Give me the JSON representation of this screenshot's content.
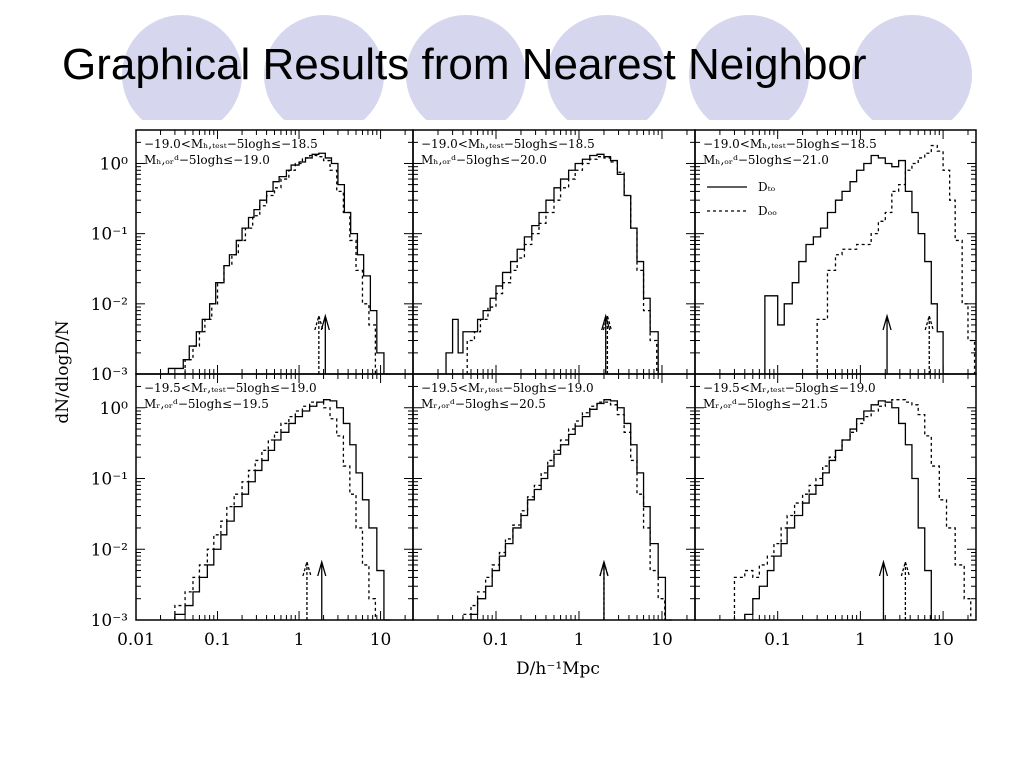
{
  "slide": {
    "title": "Graphical Results from Nearest Neighbor",
    "colors": {
      "decor_circle": "#d6d6ee",
      "text": "#000000",
      "background": "#ffffff"
    }
  },
  "figure": {
    "ylabel": "dN/dlogD/N",
    "xlabel": "D/h⁻¹Mpc",
    "y_ticks": [
      "10⁻³",
      "10⁻²",
      "10⁻¹",
      "10⁰"
    ],
    "x_ticks": [
      [
        "0.01",
        "0.1",
        "1",
        "10"
      ],
      [
        "0.1",
        "1",
        "10"
      ],
      [
        "0.1",
        "1",
        "10"
      ]
    ],
    "legend": {
      "solid": "Dₜₒ",
      "dashed": "Dₒₒ"
    }
  },
  "chart_data": [
    {
      "type": "line",
      "panel": "top-left",
      "xscale": "log",
      "yscale": "log",
      "xlim": [
        0.01,
        25
      ],
      "ylim": [
        0.001,
        3
      ],
      "annotation": [
        "−19.0<Mₕ,ₜₑₛₜ−5logh≤−18.5",
        "Mₕ,ₒᵣᵈ−5logh≤−19.0"
      ],
      "series": [
        {
          "style": "solid",
          "x": [
            0.025,
            0.03,
            0.038,
            0.045,
            0.055,
            0.065,
            0.08,
            0.095,
            0.12,
            0.14,
            0.17,
            0.2,
            0.24,
            0.28,
            0.33,
            0.4,
            0.48,
            0.57,
            0.7,
            0.8,
            1.0,
            1.2,
            1.45,
            1.75,
            2.1,
            2.5,
            3.0,
            3.6,
            4.3,
            5.2,
            6.2,
            7.5,
            9.0,
            11.0
          ],
          "y": [
            0.0012,
            0.0012,
            0.0016,
            0.0025,
            0.004,
            0.006,
            0.01,
            0.02,
            0.035,
            0.05,
            0.08,
            0.12,
            0.17,
            0.22,
            0.3,
            0.4,
            0.55,
            0.65,
            0.8,
            0.95,
            1.05,
            1.2,
            1.35,
            1.4,
            1.2,
            1.0,
            0.5,
            0.2,
            0.1,
            0.05,
            0.025,
            0.008,
            0.002,
            0.001
          ]
        },
        {
          "style": "dashed",
          "x": [
            0.04,
            0.05,
            0.06,
            0.07,
            0.085,
            0.1,
            0.12,
            0.15,
            0.18,
            0.22,
            0.27,
            0.33,
            0.4,
            0.5,
            0.6,
            0.75,
            0.9,
            1.1,
            1.35,
            1.65,
            2.0,
            2.4,
            2.9,
            3.5,
            4.2,
            5.0,
            6.0,
            7.2
          ],
          "y": [
            0.0016,
            0.0025,
            0.004,
            0.006,
            0.01,
            0.02,
            0.035,
            0.05,
            0.08,
            0.12,
            0.18,
            0.25,
            0.35,
            0.45,
            0.6,
            0.8,
            1.0,
            1.2,
            1.3,
            1.25,
            1.1,
            0.8,
            0.4,
            0.2,
            0.08,
            0.03,
            0.01,
            0.005
          ]
        }
      ],
      "markers": [
        {
          "style": "solid",
          "x": 2.1
        },
        {
          "style": "dashed",
          "x": 1.75
        }
      ]
    },
    {
      "type": "line",
      "panel": "top-middle",
      "xscale": "log",
      "yscale": "log",
      "xlim": [
        0.01,
        25
      ],
      "ylim": [
        0.001,
        3
      ],
      "annotation": [
        "−19.0<Mₕ,ₜₑₛₜ−5logh≤−18.5",
        "Mₕ,ₒᵣᵈ−5logh≤−20.0"
      ],
      "series": [
        {
          "style": "solid",
          "x": [
            0.025,
            0.03,
            0.035,
            0.04,
            0.05,
            0.06,
            0.07,
            0.085,
            0.1,
            0.12,
            0.15,
            0.18,
            0.22,
            0.27,
            0.33,
            0.4,
            0.5,
            0.6,
            0.75,
            0.9,
            1.1,
            1.35,
            1.65,
            2.0,
            2.4,
            2.9,
            3.5,
            4.2,
            5.0,
            6.0,
            7.2,
            9.0
          ],
          "y": [
            0.002,
            0.006,
            0.002,
            0.004,
            0.004,
            0.006,
            0.008,
            0.012,
            0.018,
            0.028,
            0.04,
            0.06,
            0.09,
            0.13,
            0.2,
            0.3,
            0.45,
            0.6,
            0.8,
            1.0,
            1.15,
            1.3,
            1.35,
            1.25,
            1.1,
            0.7,
            0.35,
            0.12,
            0.04,
            0.012,
            0.004,
            0.001
          ]
        },
        {
          "style": "dashed",
          "x": [
            0.045,
            0.055,
            0.065,
            0.08,
            0.1,
            0.12,
            0.15,
            0.18,
            0.22,
            0.27,
            0.33,
            0.4,
            0.5,
            0.6,
            0.75,
            0.9,
            1.1,
            1.35,
            1.65,
            2.0,
            2.4,
            2.9,
            3.5,
            4.2,
            5.0,
            6.0,
            7.2
          ],
          "y": [
            0.003,
            0.004,
            0.006,
            0.009,
            0.014,
            0.02,
            0.03,
            0.045,
            0.07,
            0.1,
            0.14,
            0.2,
            0.3,
            0.45,
            0.6,
            0.8,
            1.0,
            1.15,
            1.25,
            1.2,
            1.05,
            0.75,
            0.35,
            0.12,
            0.03,
            0.008,
            0.003
          ]
        }
      ],
      "markers": [
        {
          "style": "solid",
          "x": 2.1
        },
        {
          "style": "dashed",
          "x": 2.2
        }
      ]
    },
    {
      "type": "line",
      "panel": "top-right",
      "xscale": "log",
      "yscale": "log",
      "xlim": [
        0.01,
        25
      ],
      "ylim": [
        0.001,
        3
      ],
      "annotation": [
        "−19.0<Mₕ,ₜₑₛₜ−5logh≤−18.5",
        "Mₕ,ₒᵣᵈ−5logh≤−21.0"
      ],
      "series": [
        {
          "style": "solid",
          "x": [
            0.07,
            0.1,
            0.12,
            0.15,
            0.18,
            0.22,
            0.27,
            0.33,
            0.4,
            0.5,
            0.6,
            0.75,
            0.9,
            1.1,
            1.35,
            1.65,
            2.0,
            2.4,
            2.9,
            3.5,
            4.2,
            5.0,
            6.0,
            7.2,
            8.5,
            10.0
          ],
          "y": [
            0.013,
            0.005,
            0.01,
            0.02,
            0.04,
            0.07,
            0.09,
            0.12,
            0.2,
            0.3,
            0.4,
            0.55,
            0.8,
            1.0,
            1.3,
            1.2,
            1.0,
            0.9,
            1.1,
            0.4,
            0.2,
            0.1,
            0.04,
            0.01,
            0.004,
            0.001
          ]
        },
        {
          "style": "dashed",
          "x": [
            0.3,
            0.4,
            0.5,
            0.6,
            0.75,
            0.9,
            1.1,
            1.35,
            1.65,
            2.0,
            2.4,
            2.9,
            3.5,
            4.2,
            5.0,
            6.0,
            7.2,
            8.5,
            10.0,
            12.0,
            14.0,
            17.0,
            20.0
          ],
          "y": [
            0.006,
            0.03,
            0.05,
            0.06,
            0.06,
            0.07,
            0.07,
            0.1,
            0.15,
            0.2,
            0.4,
            0.5,
            0.8,
            1.0,
            1.2,
            1.4,
            1.8,
            1.5,
            0.8,
            0.3,
            0.08,
            0.01,
            0.003
          ]
        }
      ],
      "markers": [
        {
          "style": "solid",
          "x": 2.1
        },
        {
          "style": "dashed",
          "x": 6.8
        }
      ]
    },
    {
      "type": "line",
      "panel": "bottom-left",
      "xscale": "log",
      "yscale": "log",
      "xlim": [
        0.01,
        25
      ],
      "ylim": [
        0.001,
        3
      ],
      "annotation": [
        "−19.5<Mᵣ,ₜₑₛₜ−5logh≤−19.0",
        "Mᵣ,ₒᵣᵈ−5logh≤−19.5"
      ],
      "series": [
        {
          "style": "solid",
          "x": [
            0.03,
            0.04,
            0.05,
            0.06,
            0.075,
            0.09,
            0.11,
            0.13,
            0.16,
            0.2,
            0.24,
            0.29,
            0.35,
            0.42,
            0.5,
            0.6,
            0.75,
            0.9,
            1.1,
            1.35,
            1.65,
            2.0,
            2.4,
            2.9,
            3.5,
            4.2,
            5.0,
            6.0,
            7.2,
            9.0,
            11.0
          ],
          "y": [
            0.0012,
            0.0016,
            0.0025,
            0.004,
            0.006,
            0.01,
            0.016,
            0.025,
            0.04,
            0.06,
            0.09,
            0.13,
            0.18,
            0.25,
            0.35,
            0.45,
            0.6,
            0.75,
            0.9,
            1.05,
            1.2,
            1.3,
            1.25,
            1.0,
            0.6,
            0.3,
            0.12,
            0.05,
            0.02,
            0.005,
            0.001
          ]
        },
        {
          "style": "dashed",
          "x": [
            0.03,
            0.04,
            0.05,
            0.06,
            0.075,
            0.09,
            0.11,
            0.13,
            0.16,
            0.2,
            0.24,
            0.29,
            0.35,
            0.42,
            0.5,
            0.6,
            0.75,
            0.9,
            1.1,
            1.35,
            1.65,
            2.0,
            2.4,
            2.9,
            3.5,
            4.2,
            5.0,
            6.0,
            7.2
          ],
          "y": [
            0.0016,
            0.0025,
            0.004,
            0.006,
            0.01,
            0.016,
            0.025,
            0.04,
            0.06,
            0.09,
            0.13,
            0.18,
            0.25,
            0.35,
            0.45,
            0.6,
            0.75,
            0.9,
            1.05,
            1.2,
            1.2,
            1.0,
            0.7,
            0.4,
            0.15,
            0.06,
            0.02,
            0.006,
            0.002
          ]
        }
      ],
      "markers": [
        {
          "style": "solid",
          "x": 1.9
        },
        {
          "style": "dashed",
          "x": 1.25
        }
      ]
    },
    {
      "type": "line",
      "panel": "bottom-middle",
      "xscale": "log",
      "yscale": "log",
      "xlim": [
        0.01,
        25
      ],
      "ylim": [
        0.001,
        3
      ],
      "annotation": [
        "−19.5<Mᵣ,ₜₑₛₜ−5logh≤−19.0",
        "Mᵣ,ₒᵣᵈ−5logh≤−20.5"
      ],
      "series": [
        {
          "style": "solid",
          "x": [
            0.05,
            0.06,
            0.075,
            0.09,
            0.11,
            0.13,
            0.16,
            0.2,
            0.24,
            0.29,
            0.35,
            0.42,
            0.5,
            0.6,
            0.75,
            0.9,
            1.1,
            1.35,
            1.65,
            2.0,
            2.4,
            2.9,
            3.5,
            4.2,
            5.0,
            6.0,
            7.2,
            9.0,
            11.0
          ],
          "y": [
            0.0012,
            0.002,
            0.003,
            0.005,
            0.008,
            0.012,
            0.02,
            0.03,
            0.05,
            0.07,
            0.1,
            0.15,
            0.22,
            0.3,
            0.42,
            0.55,
            0.75,
            0.95,
            1.15,
            1.3,
            1.25,
            1.0,
            0.6,
            0.3,
            0.12,
            0.04,
            0.012,
            0.004,
            0.001
          ]
        },
        {
          "style": "dashed",
          "x": [
            0.04,
            0.05,
            0.06,
            0.075,
            0.09,
            0.11,
            0.13,
            0.16,
            0.2,
            0.24,
            0.29,
            0.35,
            0.42,
            0.5,
            0.6,
            0.75,
            0.9,
            1.1,
            1.35,
            1.65,
            2.0,
            2.4,
            2.9,
            3.5,
            4.2,
            5.0,
            6.0,
            7.2,
            9.0
          ],
          "y": [
            0.0012,
            0.0016,
            0.0025,
            0.004,
            0.006,
            0.009,
            0.014,
            0.022,
            0.035,
            0.055,
            0.08,
            0.12,
            0.18,
            0.25,
            0.35,
            0.5,
            0.65,
            0.85,
            1.05,
            1.2,
            1.2,
            1.1,
            0.8,
            0.45,
            0.18,
            0.06,
            0.02,
            0.005,
            0.002
          ]
        }
      ],
      "markers": [
        {
          "style": "solid",
          "x": 2.0
        },
        {
          "style": "dashed",
          "x": 2.0
        }
      ]
    },
    {
      "type": "line",
      "panel": "bottom-right",
      "xscale": "log",
      "yscale": "log",
      "xlim": [
        0.01,
        25
      ],
      "ylim": [
        0.001,
        3
      ],
      "annotation": [
        "−19.5<Mᵣ,ₜₑₛₜ−5logh≤−19.0",
        "Mᵣ,ₒᵣᵈ−5logh≤−21.5"
      ],
      "series": [
        {
          "style": "solid",
          "x": [
            0.04,
            0.05,
            0.06,
            0.075,
            0.09,
            0.11,
            0.13,
            0.16,
            0.2,
            0.24,
            0.29,
            0.35,
            0.42,
            0.5,
            0.6,
            0.75,
            0.9,
            1.1,
            1.35,
            1.65,
            2.0,
            2.4,
            2.9,
            3.5,
            4.2,
            5.0,
            6.0,
            7.2
          ],
          "y": [
            0.0012,
            0.002,
            0.003,
            0.005,
            0.008,
            0.012,
            0.02,
            0.03,
            0.045,
            0.06,
            0.08,
            0.12,
            0.18,
            0.25,
            0.35,
            0.5,
            0.7,
            0.9,
            1.1,
            1.25,
            1.2,
            1.0,
            0.6,
            0.3,
            0.1,
            0.02,
            0.005,
            0.001
          ]
        },
        {
          "style": "dashed",
          "x": [
            0.03,
            0.04,
            0.05,
            0.06,
            0.075,
            0.09,
            0.11,
            0.13,
            0.16,
            0.2,
            0.24,
            0.29,
            0.35,
            0.42,
            0.5,
            0.6,
            0.75,
            0.9,
            1.1,
            1.35,
            1.65,
            2.0,
            2.4,
            2.9,
            3.5,
            4.2,
            5.0,
            6.0,
            7.2,
            9.0,
            11.0,
            14.0,
            18.0
          ],
          "y": [
            0.004,
            0.005,
            0.004,
            0.006,
            0.008,
            0.012,
            0.02,
            0.03,
            0.045,
            0.06,
            0.08,
            0.1,
            0.15,
            0.2,
            0.25,
            0.35,
            0.45,
            0.6,
            0.75,
            0.9,
            1.05,
            1.2,
            1.3,
            1.3,
            1.2,
            1.1,
            0.8,
            0.4,
            0.15,
            0.05,
            0.02,
            0.006,
            0.002
          ]
        }
      ],
      "markers": [
        {
          "style": "solid",
          "x": 1.9
        },
        {
          "style": "dashed",
          "x": 3.5
        }
      ]
    }
  ]
}
